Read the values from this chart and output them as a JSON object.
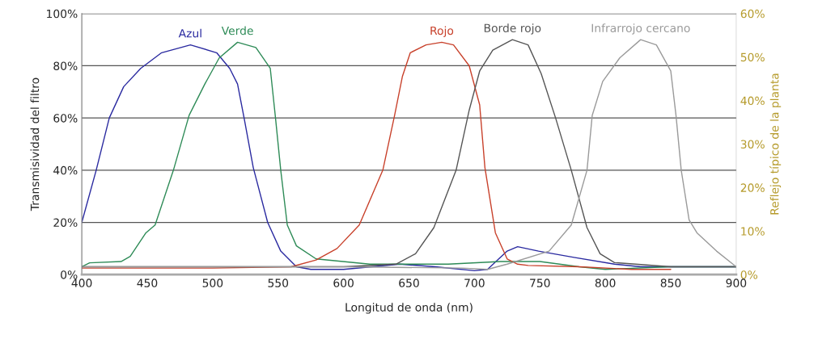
{
  "chart_data": {
    "type": "line",
    "xlabel": "Longitud de onda (nm)",
    "ylabel": "Transmisividad del filtro",
    "y2label": "Reflejo típico de la planta",
    "xlim": [
      400,
      900
    ],
    "xticks": [
      400,
      450,
      500,
      550,
      600,
      650,
      700,
      750,
      800,
      850,
      900
    ],
    "ylim": [
      0,
      100
    ],
    "yticks": [
      {
        "value": 0,
        "label": "0%"
      },
      {
        "value": 20,
        "label": "20%"
      },
      {
        "value": 40,
        "label": "40%"
      },
      {
        "value": 60,
        "label": "60%"
      },
      {
        "value": 80,
        "label": "80%"
      },
      {
        "value": 100,
        "label": "100%"
      }
    ],
    "y2lim": [
      0,
      60
    ],
    "y2ticks": [
      {
        "value": 0,
        "label": "0%"
      },
      {
        "value": 10,
        "label": "10%"
      },
      {
        "value": 20,
        "label": "20%"
      },
      {
        "value": 30,
        "label": "30%"
      },
      {
        "value": 40,
        "label": "40%"
      },
      {
        "value": 50,
        "label": "50%"
      },
      {
        "value": 60,
        "label": "60%"
      }
    ],
    "grid": "y",
    "marker": "none",
    "line_style": "solid",
    "series": [
      {
        "name": "Azul",
        "color": "#2a2aa0",
        "x": [
          400,
          411,
          421,
          432,
          445,
          461,
          483,
          503,
          513,
          519,
          524,
          531,
          542,
          552,
          564,
          575,
          600,
          643,
          670,
          700,
          710,
          725,
          733,
          749,
          776,
          807,
          827,
          850,
          900
        ],
        "values": [
          20,
          40,
          60,
          72,
          79,
          85,
          88,
          85,
          79,
          73,
          60,
          41,
          20,
          9,
          3,
          2,
          2,
          4,
          3,
          1.5,
          2,
          9,
          10.7,
          9,
          6.6,
          4,
          3,
          3,
          3
        ]
      },
      {
        "name": "Verde",
        "color": "#2e8b57",
        "x": [
          400,
          406,
          430,
          437,
          449,
          456,
          470,
          482,
          494,
          505,
          519,
          533,
          544,
          548,
          552,
          557,
          564,
          579,
          620,
          680,
          720,
          750,
          780,
          800,
          850,
          900
        ],
        "values": [
          3,
          4.5,
          5,
          7,
          16,
          19,
          40,
          61,
          73,
          83,
          89,
          87,
          79,
          60,
          40,
          19,
          11,
          6,
          4,
          4,
          5,
          5,
          3,
          2,
          3,
          3
        ]
      },
      {
        "name": "Rojo",
        "color": "#c8412b",
        "x": [
          400,
          500,
          560,
          579,
          595,
          612,
          630,
          639,
          645,
          651,
          663,
          675,
          684,
          696,
          704,
          708,
          716,
          725,
          733,
          741,
          780,
          820,
          850
        ],
        "values": [
          2.5,
          2.5,
          3,
          5.6,
          10,
          19,
          40,
          61,
          76,
          85,
          88,
          89,
          88,
          80,
          65,
          41,
          16,
          6,
          4,
          3.5,
          3,
          2,
          2
        ]
      },
      {
        "name": "Borde rojo",
        "color": "#555555",
        "x": [
          400,
          600,
          640,
          655,
          669,
          686,
          696,
          704,
          714,
          729,
          741,
          751,
          762,
          774,
          786,
          796,
          807,
          850,
          900
        ],
        "values": [
          3,
          3,
          4,
          8,
          18,
          40,
          63,
          78,
          86,
          90,
          88,
          77,
          60,
          40,
          18,
          8,
          4.6,
          3,
          3
        ]
      },
      {
        "name": "Infrarrojo cercano",
        "color": "#9a9a9a",
        "x": [
          400,
          600,
          690,
          710,
          725,
          757,
          774,
          786,
          790,
          798,
          811,
          827,
          839,
          850,
          854,
          858,
          864,
          870,
          885,
          900
        ],
        "values": [
          3,
          3,
          2.5,
          2,
          4,
          9,
          19,
          40,
          61,
          74,
          83,
          90,
          88,
          78,
          61,
          40,
          21,
          16,
          9,
          3
        ]
      }
    ]
  }
}
